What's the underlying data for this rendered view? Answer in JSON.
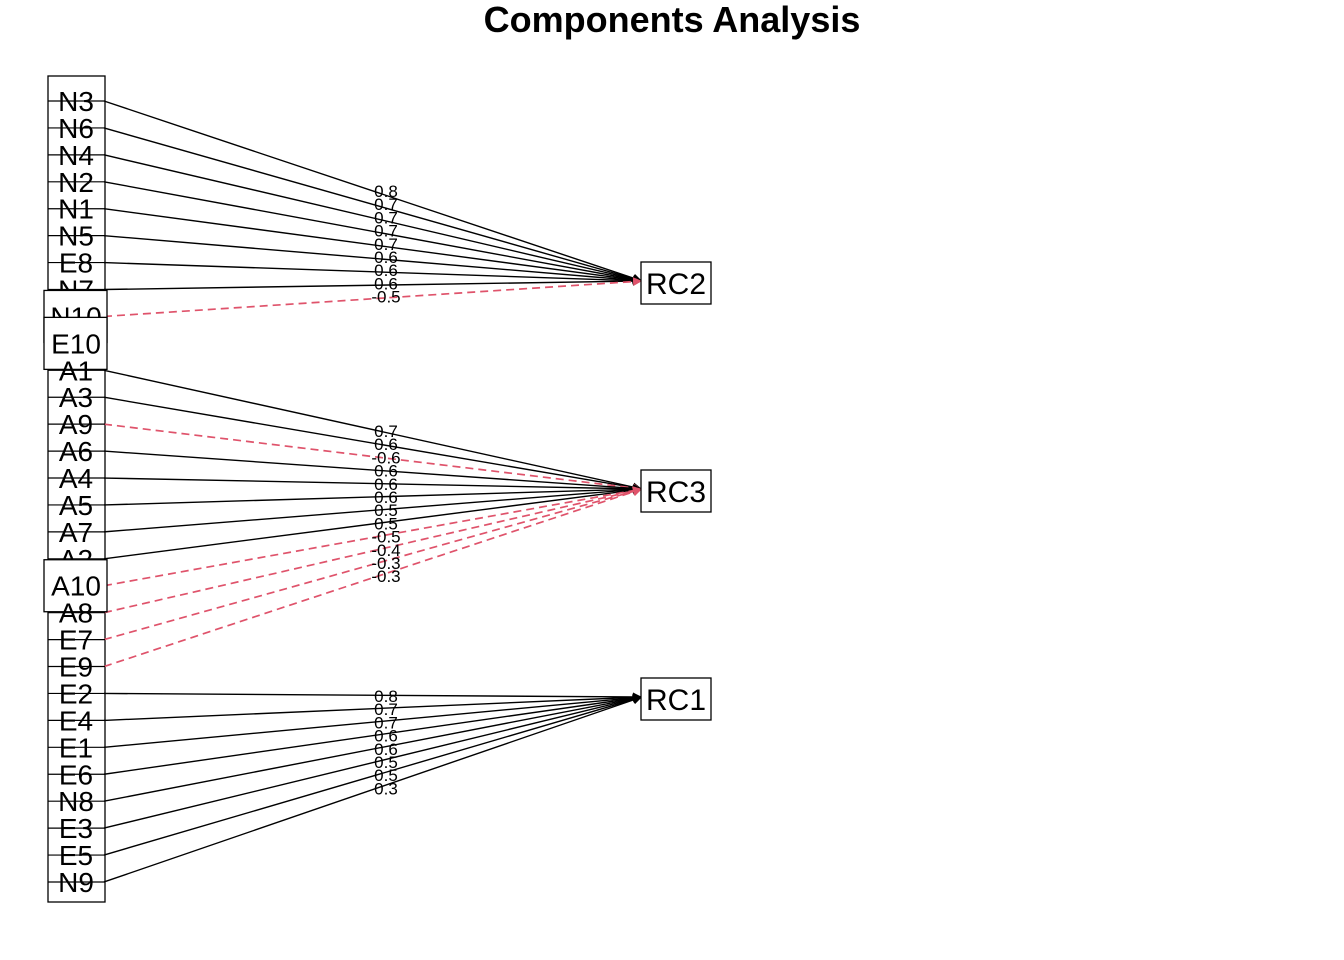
{
  "title": "Components Analysis",
  "colors": {
    "positive": "#000000",
    "negative": "#DF536B"
  },
  "components": [
    "RC2",
    "RC3",
    "RC1"
  ],
  "variables": [
    "N3",
    "N6",
    "N4",
    "N2",
    "N1",
    "N5",
    "E8",
    "N7",
    "N10",
    "E10",
    "A1",
    "A3",
    "A9",
    "A6",
    "A4",
    "A5",
    "A7",
    "A2",
    "A10",
    "A8",
    "E7",
    "E9",
    "E2",
    "E4",
    "E1",
    "E6",
    "N8",
    "E3",
    "E5",
    "N9"
  ],
  "loadings": [
    {
      "from": "N3",
      "to": "RC2",
      "label": "0.8",
      "sign": "positive"
    },
    {
      "from": "N6",
      "to": "RC2",
      "label": "0.7",
      "sign": "positive"
    },
    {
      "from": "N4",
      "to": "RC2",
      "label": "0.7",
      "sign": "positive"
    },
    {
      "from": "N2",
      "to": "RC2",
      "label": "0.7",
      "sign": "positive"
    },
    {
      "from": "N1",
      "to": "RC2",
      "label": "0.7",
      "sign": "positive"
    },
    {
      "from": "N5",
      "to": "RC2",
      "label": "0.6",
      "sign": "positive"
    },
    {
      "from": "E8",
      "to": "RC2",
      "label": "0.6",
      "sign": "positive"
    },
    {
      "from": "N7",
      "to": "RC2",
      "label": "0.6",
      "sign": "positive"
    },
    {
      "from": "N10",
      "to": "RC2",
      "label": "-0.5",
      "sign": "negative"
    },
    {
      "from": "A1",
      "to": "RC3",
      "label": "0.7",
      "sign": "positive"
    },
    {
      "from": "A3",
      "to": "RC3",
      "label": "0.6",
      "sign": "positive"
    },
    {
      "from": "A9",
      "to": "RC3",
      "label": "-0.6",
      "sign": "negative"
    },
    {
      "from": "A6",
      "to": "RC3",
      "label": "0.6",
      "sign": "positive"
    },
    {
      "from": "A4",
      "to": "RC3",
      "label": "0.6",
      "sign": "positive"
    },
    {
      "from": "A5",
      "to": "RC3",
      "label": "0.6",
      "sign": "positive"
    },
    {
      "from": "A7",
      "to": "RC3",
      "label": "0.5",
      "sign": "positive"
    },
    {
      "from": "A2",
      "to": "RC3",
      "label": "0.5",
      "sign": "positive"
    },
    {
      "from": "A10",
      "to": "RC3",
      "label": "-0.5",
      "sign": "negative"
    },
    {
      "from": "A8",
      "to": "RC3",
      "label": "-0.4",
      "sign": "negative"
    },
    {
      "from": "E7",
      "to": "RC3",
      "label": "-0.3",
      "sign": "negative"
    },
    {
      "from": "E9",
      "to": "RC3",
      "label": "-0.3",
      "sign": "negative"
    },
    {
      "from": "E2",
      "to": "RC1",
      "label": "0.8",
      "sign": "positive"
    },
    {
      "from": "E4",
      "to": "RC1",
      "label": "0.7",
      "sign": "positive"
    },
    {
      "from": "E1",
      "to": "RC1",
      "label": "0.7",
      "sign": "positive"
    },
    {
      "from": "E6",
      "to": "RC1",
      "label": "0.6",
      "sign": "positive"
    },
    {
      "from": "N8",
      "to": "RC1",
      "label": "0.6",
      "sign": "positive"
    },
    {
      "from": "E3",
      "to": "RC1",
      "label": "0.5",
      "sign": "positive"
    },
    {
      "from": "E5",
      "to": "RC1",
      "label": "0.5",
      "sign": "positive"
    },
    {
      "from": "N9",
      "to": "RC1",
      "label": "0.3",
      "sign": "positive"
    }
  ]
}
